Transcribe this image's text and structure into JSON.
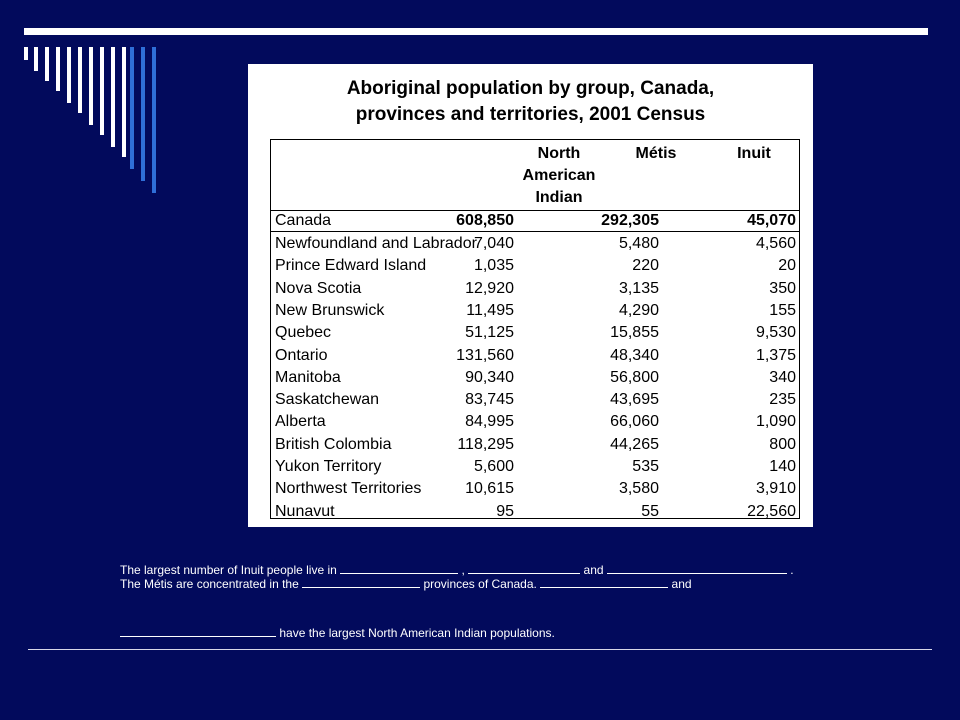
{
  "table": {
    "title_line1": "Aboriginal population by group, Canada,",
    "title_line2": "provinces and territories, 2001 Census",
    "headers": {
      "nai_line1": "North",
      "nai_line2": "American",
      "nai_line3": "Indian",
      "metis": "Métis",
      "inuit": "Inuit"
    },
    "canada": {
      "name": "Canada",
      "nai": "608,850",
      "metis": "292,305",
      "inuit": "45,070"
    },
    "rows": [
      {
        "name": "Newfoundland and Labrador",
        "nai": "7,040",
        "metis": "5,480",
        "inuit": "4,560"
      },
      {
        "name": "Prince Edward Island",
        "nai": "1,035",
        "metis": "220",
        "inuit": "20"
      },
      {
        "name": "Nova Scotia",
        "nai": "12,920",
        "metis": "3,135",
        "inuit": "350"
      },
      {
        "name": "New Brunswick",
        "nai": "11,495",
        "metis": "4,290",
        "inuit": "155"
      },
      {
        "name": "Quebec",
        "nai": "51,125",
        "metis": "15,855",
        "inuit": "9,530"
      },
      {
        "name": "Ontario",
        "nai": "131,560",
        "metis": "48,340",
        "inuit": "1,375"
      },
      {
        "name": "Manitoba",
        "nai": "90,340",
        "metis": "56,800",
        "inuit": "340"
      },
      {
        "name": "Saskatchewan",
        "nai": "83,745",
        "metis": "43,695",
        "inuit": "235"
      },
      {
        "name": "Alberta",
        "nai": "84,995",
        "metis": "66,060",
        "inuit": "1,090"
      },
      {
        "name": "British Colombia",
        "nai": "118,295",
        "metis": "44,265",
        "inuit": "800"
      },
      {
        "name": "Yukon Territory",
        "nai": "5,600",
        "metis": "535",
        "inuit": "140"
      },
      {
        "name": "Northwest Territories",
        "nai": "10,615",
        "metis": "3,580",
        "inuit": "3,910"
      },
      {
        "name": "Nunavut",
        "nai": "95",
        "metis": "55",
        "inuit": "22,560"
      }
    ]
  },
  "caption": {
    "line1_a": "The largest number of Inuit people live in",
    "line1_sep": ",",
    "line1_and": "and",
    "line1_end": ".",
    "line2_a": "The Métis are concentrated in the",
    "line2_b": "provinces of Canada.",
    "line2_and": "and",
    "line3": "have the largest North American Indian populations."
  },
  "colors": {
    "background": "#020a5c",
    "accent_bar": "#2f6fd8",
    "white": "#ffffff"
  }
}
